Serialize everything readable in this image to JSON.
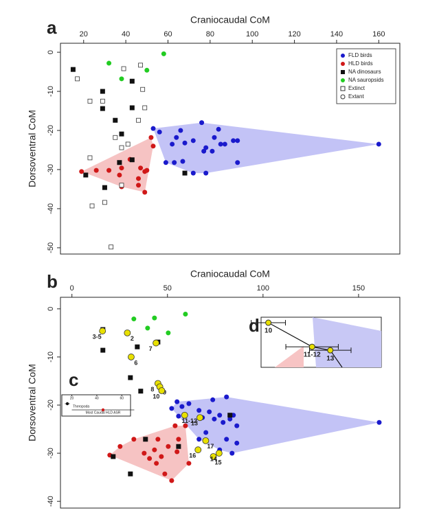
{
  "chart_data": [
    {
      "type": "scatter",
      "panel": "a",
      "xlabel": "Craniocaudal CoM",
      "ylabel": "Dorsoventral CoM",
      "xlim": [
        9,
        170
      ],
      "ylim": [
        -51.6,
        2.3
      ],
      "xticks": [
        20,
        40,
        60,
        80,
        100,
        120,
        140,
        160
      ],
      "yticks": [
        0,
        -10,
        -20,
        -30,
        -40,
        -50
      ],
      "legend": "top-right",
      "series": [
        {
          "name": "FLD birds",
          "color": "#1a1acc",
          "marker": "circle",
          "hull": "#b8b8f5",
          "x": [
            53,
            56,
            66,
            62,
            64,
            68,
            72,
            76,
            78,
            82,
            77,
            81,
            85,
            87,
            84,
            91,
            93,
            59,
            63,
            67,
            72,
            78,
            93,
            160
          ],
          "y": [
            -19.5,
            -20.4,
            -20,
            -23.5,
            -21.8,
            -23.2,
            -22.6,
            -18,
            -24.4,
            -21.8,
            -25.3,
            -25.3,
            -23.5,
            -23.5,
            -19.7,
            -22.6,
            -22.6,
            -28.2,
            -28.2,
            -27.9,
            -30.9,
            -30.9,
            -28.2,
            -23.5
          ]
        },
        {
          "name": "HLD birds",
          "color": "#d01818",
          "marker": "circle",
          "hull": "#f5b8b8",
          "x": [
            19,
            26,
            37,
            42,
            46,
            47,
            49,
            50,
            46,
            49,
            52,
            53,
            38,
            38,
            32
          ],
          "y": [
            -30.5,
            -30.2,
            -31.4,
            -27.4,
            -32.3,
            -29.6,
            -30.5,
            -30.2,
            -34,
            -35.8,
            -21.8,
            -24,
            -34.4,
            -29.6,
            -30.2
          ]
        },
        {
          "name": "NA dinosaurs",
          "color": "#111111",
          "marker": "square",
          "x": [
            15,
            29,
            29,
            35,
            38,
            43,
            43,
            30,
            21,
            37,
            43,
            68
          ],
          "y": [
            -4.4,
            -10,
            -14.4,
            -17.4,
            -20.9,
            -7.4,
            -14.2,
            -34.6,
            -31.4,
            -28.2,
            -27.5,
            -30.9
          ]
        },
        {
          "name": "NA sauropsids",
          "color": "#22cc22",
          "marker": "circle",
          "x": [
            32,
            58,
            50,
            38
          ],
          "y": [
            -2.8,
            -0.4,
            -4.6,
            -6.8
          ]
        },
        {
          "name": "Extinct",
          "color": "#333333",
          "marker": "open-square",
          "x": [
            17,
            23,
            29,
            23,
            24,
            30,
            33,
            35,
            38,
            47,
            48,
            49,
            46,
            38,
            41,
            39
          ],
          "y": [
            -6.8,
            -12.5,
            -12.5,
            -27,
            -39.3,
            -38.4,
            -49.8,
            -21.8,
            -24.4,
            -3.3,
            -9.5,
            -14.2,
            -17.4,
            -34,
            -23.5,
            -4.2
          ]
        },
        {
          "name": "Extant",
          "color": "#333333",
          "marker": "open-circle",
          "x": [],
          "y": []
        }
      ]
    },
    {
      "type": "scatter",
      "panel": "b",
      "xlabel": "Craniocaudal CoM",
      "ylabel": "Dorsoventral CoM",
      "xlim": [
        -6,
        171.6
      ],
      "ylim": [
        -41.4,
        2.4
      ],
      "xticks": [
        0,
        50,
        100,
        150
      ],
      "yticks": [
        0,
        -10,
        -20,
        -30,
        -40
      ],
      "series": [
        {
          "color": "#1a1acc",
          "marker": "circle",
          "hull": "#b8b8f5",
          "x": [
            55,
            57.6,
            61.2,
            66.5,
            68.3,
            71.9,
            74.5,
            77.3,
            79.1,
            82.7,
            84.5,
            86.3,
            80.9,
            73.7,
            80.9,
            66.5,
            77.3,
            83.8,
            160.8,
            52.2,
            55.8,
            70.1,
            86.3
          ],
          "y": [
            -19.3,
            -20.3,
            -19.7,
            -21.1,
            -22.6,
            -21.4,
            -22.9,
            -22.1,
            -23.6,
            -22.9,
            -22.1,
            -24.3,
            -18.3,
            -18.9,
            -27.1,
            -27.1,
            -29.3,
            -30,
            -23.6,
            -20.7,
            -22.3,
            -25.7,
            -27.9
          ]
        },
        {
          "color": "#d01818",
          "marker": "circle",
          "hull": "#f5b8b8",
          "x": [
            19.8,
            25.2,
            32.4,
            37.8,
            40.6,
            43.2,
            44.2,
            46.8,
            50.4,
            48.6,
            52.2,
            54,
            55.8,
            55,
            61.2,
            45,
            59.4
          ],
          "y": [
            -30.4,
            -28.6,
            -27.1,
            -30,
            -31.1,
            -29.3,
            -32.1,
            -30.7,
            -28.6,
            -34.3,
            -35.7,
            -24.3,
            -27.1,
            -29.7,
            -32.1,
            -27.1,
            -24.3
          ]
        },
        {
          "color": "#111111",
          "marker": "square",
          "x": [
            16.2,
            16.2,
            34.2,
            45,
            30.6,
            36,
            38.5,
            55.8,
            82.7,
            21.6,
            30.6
          ],
          "y": [
            -4.3,
            -8.6,
            -7.9,
            -6.9,
            -14.3,
            -17.1,
            -27.1,
            -28.6,
            -22.1,
            -30.7,
            -34.3
          ]
        },
        {
          "color": "#22cc22",
          "marker": "circle",
          "x": [
            32.4,
            39.6,
            50.4,
            59.4,
            43.2
          ],
          "y": [
            -2.1,
            -4,
            -5,
            -1.1,
            -1.9
          ]
        },
        {
          "color": "#e8e000",
          "marker": "node",
          "labels": [
            "3-5",
            "2",
            "7",
            "6",
            "8",
            "9",
            "10",
            "11-12",
            "13",
            "17",
            "16",
            "15",
            "14"
          ],
          "x": [
            16,
            29,
            44,
            31,
            45,
            46,
            47,
            59,
            67,
            70,
            66,
            74,
            77
          ],
          "y": [
            -4.6,
            -5,
            -7.1,
            -10,
            -15.5,
            -16.2,
            -17,
            -22.1,
            -22.6,
            -27.4,
            -29.3,
            -30.7,
            -30
          ]
        }
      ]
    },
    {
      "type": "errorbar",
      "panel": "c",
      "xlim": [
        12,
        67
      ],
      "xticks": [
        20,
        40,
        60
      ],
      "categories": [
        "Theropoda",
        "Most Caudal HLD ASR"
      ],
      "colors": [
        "#111111",
        "#d01818"
      ],
      "values": [
        16.4,
        45
      ],
      "errors": [
        2,
        25
      ]
    },
    {
      "type": "errorbar-node",
      "panel": "d",
      "xlim": [
        44,
        77
      ],
      "ylim": [
        -26,
        -16
      ],
      "labels": [
        "10",
        "11-12",
        "13"
      ],
      "x": [
        46,
        58,
        63
      ],
      "y": [
        -17.1,
        -21.9,
        -22.6
      ],
      "errors": [
        4.7,
        7.2,
        5.7
      ],
      "color": "#e8e000"
    }
  ]
}
